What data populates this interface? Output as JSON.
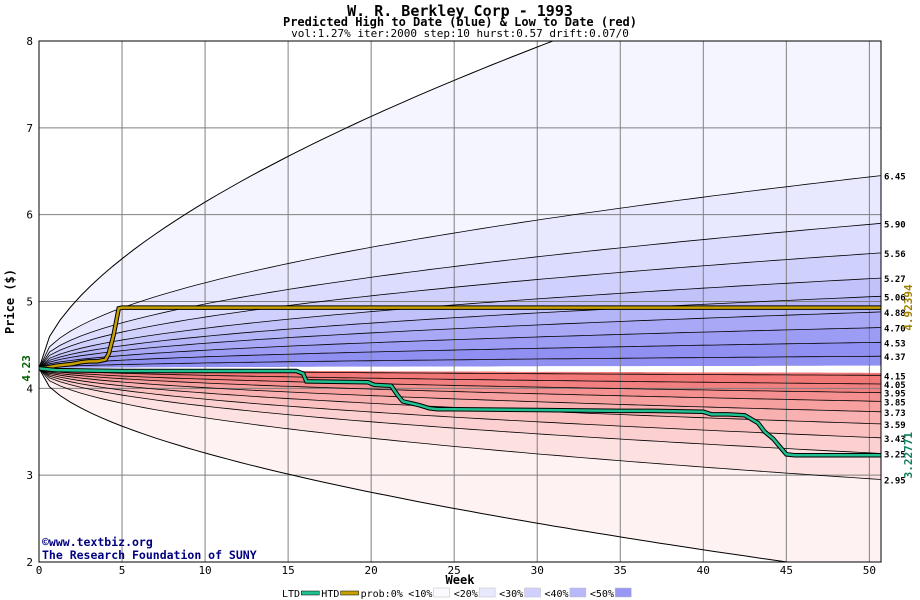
{
  "chart_data": {
    "type": "area",
    "title": "W. R. Berkley Corp - 1993",
    "subtitle": "Predicted High to Date (blue) &  Low to Date (red)",
    "params": "vol:1.27% iter:2000 step:10 hurst:0.57 drift:0.07/0",
    "xlabel": "Week",
    "ylabel": "Price ($)",
    "xlim": [
      0,
      50.7
    ],
    "ylim": [
      2,
      8
    ],
    "x_ticks": [
      0,
      5,
      10,
      15,
      20,
      25,
      30,
      35,
      40,
      45,
      50
    ],
    "y_ticks": [
      2,
      3,
      4,
      5,
      6,
      7,
      8
    ],
    "grid": true,
    "start_price": "4.23",
    "start_value": 4.23,
    "high_labels": [
      "6.45",
      "5.90",
      "5.56",
      "5.27",
      "5.06",
      "4.88",
      "4.70",
      "4.53",
      "4.37"
    ],
    "high_values": [
      6.45,
      5.9,
      5.56,
      5.27,
      5.06,
      4.88,
      4.7,
      4.53,
      4.37
    ],
    "low_labels": [
      "4.15",
      "4.05",
      "3.95",
      "3.85",
      "3.73",
      "3.59",
      "3.43",
      "3.25",
      "2.95"
    ],
    "low_values": [
      4.15,
      4.05,
      3.95,
      3.85,
      3.73,
      3.59,
      3.43,
      3.25,
      2.95
    ],
    "upper_envelope_end": 8.0,
    "lower_envelope_end": 2.0,
    "htd_series": {
      "name": "HTD",
      "final_label": "4.92394",
      "color": "#c8a000",
      "x": [
        0,
        0.5,
        1,
        1.5,
        2,
        2.5,
        3,
        3.5,
        4,
        4.2,
        4.5,
        4.8,
        5,
        6,
        10,
        15,
        20,
        25,
        30,
        35,
        40,
        45,
        50.7
      ],
      "y": [
        4.23,
        4.24,
        4.26,
        4.27,
        4.28,
        4.3,
        4.31,
        4.31,
        4.33,
        4.4,
        4.62,
        4.92,
        4.93,
        4.93,
        4.93,
        4.93,
        4.93,
        4.93,
        4.93,
        4.93,
        4.93,
        4.93,
        4.93
      ]
    },
    "ltd_series": {
      "name": "LTD",
      "final_label": "3.22771",
      "color": "#20c090",
      "x": [
        0,
        1,
        5,
        10,
        15.5,
        15.9,
        16.1,
        19.8,
        20.2,
        21.2,
        21.6,
        21.9,
        22.6,
        23,
        23.5,
        24,
        25,
        30,
        35,
        37,
        40,
        40.5,
        41.5,
        42.5,
        43.3,
        43.7,
        44.2,
        44.6,
        45,
        45.5,
        50.7
      ],
      "y": [
        4.23,
        4.21,
        4.2,
        4.2,
        4.2,
        4.17,
        4.08,
        4.07,
        4.04,
        4.03,
        3.92,
        3.85,
        3.82,
        3.8,
        3.77,
        3.76,
        3.76,
        3.75,
        3.74,
        3.74,
        3.73,
        3.7,
        3.7,
        3.69,
        3.6,
        3.5,
        3.42,
        3.33,
        3.24,
        3.23,
        3.23
      ]
    },
    "legend": [
      {
        "label": "LTD",
        "swatch": "#20c090"
      },
      {
        "label": "HTD",
        "swatch": "#c8a000"
      },
      {
        "label": "prob:0%",
        "swatch": ""
      },
      {
        "label": "<10%",
        "swatch": "#fbfbff"
      },
      {
        "label": "<20%",
        "swatch": "#e8e8ff"
      },
      {
        "label": "<30%",
        "swatch": "#d0d0ff"
      },
      {
        "label": "<40%",
        "swatch": "#b8b8fa"
      },
      {
        "label": "<50%",
        "swatch": "#9898f4"
      }
    ],
    "legend_placement": "bottom"
  },
  "credits": {
    "line1": "©www.textbiz.org",
    "line2": "The Research Foundation of SUNY"
  }
}
